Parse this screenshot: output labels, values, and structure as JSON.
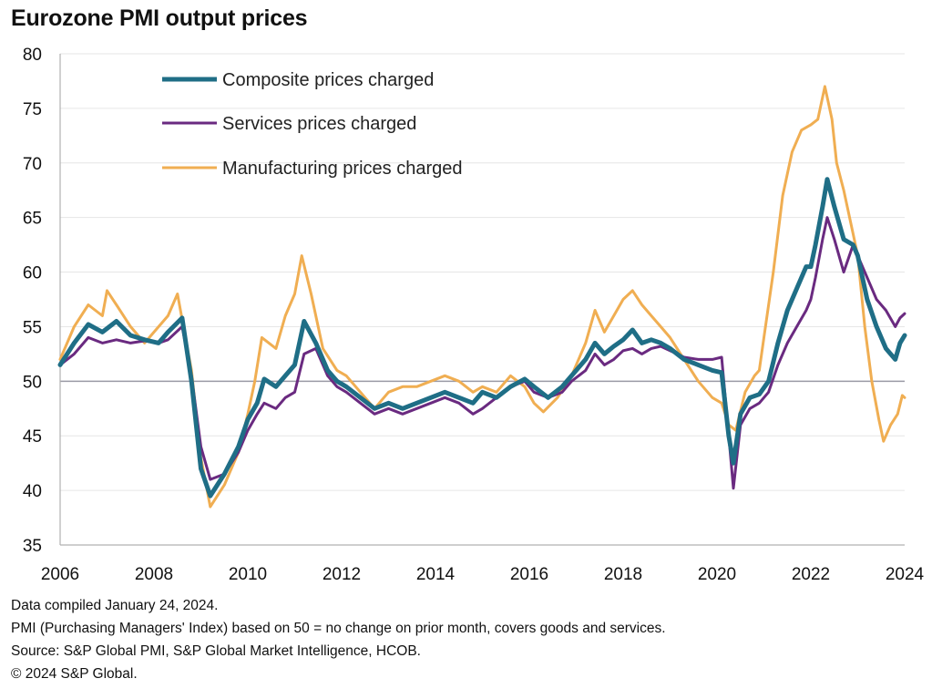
{
  "title": "Eurozone PMI output prices",
  "footnotes": [
    "Data compiled January 24, 2024.",
    "PMI (Purchasing Managers' Index) based on 50 = no change on prior month, covers goods and services.",
    "Source: S&P Global PMI, S&P Global Market Intelligence, HCOB.",
    "© 2024 S&P Global."
  ],
  "colors": {
    "composite": "#1f6e86",
    "services": "#6a2a80",
    "manufacturing": "#f0ae52",
    "grid": "#e6e6e6",
    "refline": "#9a9aa6"
  },
  "chart_data": {
    "type": "line",
    "title": "Eurozone PMI output prices",
    "xlabel": "",
    "ylabel": "",
    "xlim": [
      2006,
      2024
    ],
    "ylim": [
      35,
      80
    ],
    "yticks": [
      35,
      40,
      45,
      50,
      55,
      60,
      65,
      70,
      75,
      80
    ],
    "xticks": [
      2006,
      2008,
      2010,
      2012,
      2014,
      2016,
      2018,
      2020,
      2022,
      2024
    ],
    "xtick_labels": [
      "2006",
      "2008",
      "2010",
      "2012",
      "2014",
      "2016",
      "2018",
      "2020",
      "2022",
      "2024"
    ],
    "reference_line": 50,
    "grid": true,
    "legend_position": "top-left",
    "series": [
      {
        "name": "Composite prices charged",
        "key": "composite",
        "points": [
          [
            2006.0,
            51.5
          ],
          [
            2006.3,
            53.5
          ],
          [
            2006.6,
            55.2
          ],
          [
            2006.9,
            54.5
          ],
          [
            2007.2,
            55.5
          ],
          [
            2007.5,
            54.2
          ],
          [
            2007.8,
            53.8
          ],
          [
            2008.1,
            53.5
          ],
          [
            2008.3,
            54.5
          ],
          [
            2008.6,
            55.8
          ],
          [
            2008.8,
            50
          ],
          [
            2009.0,
            42
          ],
          [
            2009.2,
            39.5
          ],
          [
            2009.5,
            41.5
          ],
          [
            2009.8,
            44
          ],
          [
            2010.0,
            46.5
          ],
          [
            2010.2,
            48
          ],
          [
            2010.35,
            50.2
          ],
          [
            2010.6,
            49.5
          ],
          [
            2010.8,
            50.5
          ],
          [
            2011.0,
            51.5
          ],
          [
            2011.2,
            55.5
          ],
          [
            2011.45,
            53.5
          ],
          [
            2011.7,
            51
          ],
          [
            2011.9,
            50
          ],
          [
            2012.1,
            49.5
          ],
          [
            2012.4,
            48.5
          ],
          [
            2012.7,
            47.5
          ],
          [
            2013.0,
            48
          ],
          [
            2013.3,
            47.5
          ],
          [
            2013.6,
            48
          ],
          [
            2013.9,
            48.5
          ],
          [
            2014.2,
            49
          ],
          [
            2014.5,
            48.5
          ],
          [
            2014.8,
            48
          ],
          [
            2015.0,
            49
          ],
          [
            2015.3,
            48.5
          ],
          [
            2015.6,
            49.5
          ],
          [
            2015.9,
            50.2
          ],
          [
            2016.1,
            49.5
          ],
          [
            2016.4,
            48.5
          ],
          [
            2016.7,
            49.5
          ],
          [
            2016.9,
            50.5
          ],
          [
            2017.2,
            52
          ],
          [
            2017.4,
            53.5
          ],
          [
            2017.6,
            52.5
          ],
          [
            2017.8,
            53.2
          ],
          [
            2018.0,
            53.8
          ],
          [
            2018.2,
            54.7
          ],
          [
            2018.4,
            53.5
          ],
          [
            2018.6,
            53.8
          ],
          [
            2018.8,
            53.5
          ],
          [
            2019.0,
            53
          ],
          [
            2019.3,
            52
          ],
          [
            2019.6,
            51.5
          ],
          [
            2019.9,
            51
          ],
          [
            2020.1,
            50.8
          ],
          [
            2020.25,
            45
          ],
          [
            2020.35,
            42.5
          ],
          [
            2020.5,
            47
          ],
          [
            2020.7,
            48.5
          ],
          [
            2020.9,
            48.8
          ],
          [
            2021.1,
            50
          ],
          [
            2021.3,
            53.5
          ],
          [
            2021.5,
            56.5
          ],
          [
            2021.7,
            58.5
          ],
          [
            2021.9,
            60.5
          ],
          [
            2022.0,
            60.5
          ],
          [
            2022.1,
            62.5
          ],
          [
            2022.25,
            66
          ],
          [
            2022.35,
            68.5
          ],
          [
            2022.5,
            66
          ],
          [
            2022.7,
            63
          ],
          [
            2022.9,
            62.5
          ],
          [
            2023.0,
            61.5
          ],
          [
            2023.2,
            57.5
          ],
          [
            2023.4,
            55
          ],
          [
            2023.6,
            53
          ],
          [
            2023.8,
            52
          ],
          [
            2023.9,
            53.5
          ],
          [
            2024.0,
            54.2
          ]
        ]
      },
      {
        "name": "Services prices charged",
        "key": "services",
        "points": [
          [
            2006.0,
            51.5
          ],
          [
            2006.3,
            52.5
          ],
          [
            2006.6,
            54
          ],
          [
            2006.9,
            53.5
          ],
          [
            2007.2,
            53.8
          ],
          [
            2007.5,
            53.5
          ],
          [
            2007.8,
            53.7
          ],
          [
            2008.1,
            53.5
          ],
          [
            2008.3,
            53.8
          ],
          [
            2008.6,
            55
          ],
          [
            2008.8,
            50.5
          ],
          [
            2009.0,
            44
          ],
          [
            2009.2,
            41
          ],
          [
            2009.5,
            41.5
          ],
          [
            2009.8,
            43.5
          ],
          [
            2010.0,
            45.5
          ],
          [
            2010.2,
            47
          ],
          [
            2010.35,
            48
          ],
          [
            2010.6,
            47.5
          ],
          [
            2010.8,
            48.5
          ],
          [
            2011.0,
            49
          ],
          [
            2011.2,
            52.5
          ],
          [
            2011.45,
            53
          ],
          [
            2011.7,
            50.5
          ],
          [
            2011.9,
            49.5
          ],
          [
            2012.1,
            49
          ],
          [
            2012.4,
            48
          ],
          [
            2012.7,
            47
          ],
          [
            2013.0,
            47.5
          ],
          [
            2013.3,
            47
          ],
          [
            2013.6,
            47.5
          ],
          [
            2013.9,
            48
          ],
          [
            2014.2,
            48.5
          ],
          [
            2014.5,
            48
          ],
          [
            2014.8,
            47
          ],
          [
            2015.0,
            47.5
          ],
          [
            2015.3,
            48.5
          ],
          [
            2015.6,
            49.5
          ],
          [
            2015.9,
            50
          ],
          [
            2016.1,
            49
          ],
          [
            2016.4,
            48.5
          ],
          [
            2016.7,
            49
          ],
          [
            2016.9,
            50
          ],
          [
            2017.2,
            51
          ],
          [
            2017.4,
            52.5
          ],
          [
            2017.6,
            51.5
          ],
          [
            2017.8,
            52
          ],
          [
            2018.0,
            52.8
          ],
          [
            2018.2,
            53
          ],
          [
            2018.4,
            52.5
          ],
          [
            2018.6,
            53
          ],
          [
            2018.8,
            53.2
          ],
          [
            2019.0,
            52.8
          ],
          [
            2019.3,
            52.2
          ],
          [
            2019.6,
            52
          ],
          [
            2019.9,
            52
          ],
          [
            2020.1,
            52.2
          ],
          [
            2020.25,
            45
          ],
          [
            2020.35,
            40.2
          ],
          [
            2020.5,
            46
          ],
          [
            2020.7,
            47.5
          ],
          [
            2020.9,
            48
          ],
          [
            2021.1,
            49
          ],
          [
            2021.3,
            51.5
          ],
          [
            2021.5,
            53.5
          ],
          [
            2021.7,
            55
          ],
          [
            2021.9,
            56.5
          ],
          [
            2022.0,
            57.5
          ],
          [
            2022.1,
            59.5
          ],
          [
            2022.25,
            63
          ],
          [
            2022.35,
            65
          ],
          [
            2022.5,
            63
          ],
          [
            2022.7,
            60
          ],
          [
            2022.9,
            62.5
          ],
          [
            2023.0,
            61.5
          ],
          [
            2023.2,
            59.5
          ],
          [
            2023.4,
            57.5
          ],
          [
            2023.6,
            56.5
          ],
          [
            2023.8,
            55
          ],
          [
            2023.9,
            55.8
          ],
          [
            2024.0,
            56.2
          ]
        ]
      },
      {
        "name": "Manufacturing prices charged",
        "key": "manufacturing",
        "points": [
          [
            2006.0,
            52
          ],
          [
            2006.3,
            55
          ],
          [
            2006.6,
            57
          ],
          [
            2006.9,
            56
          ],
          [
            2007.0,
            58.3
          ],
          [
            2007.2,
            57
          ],
          [
            2007.5,
            55
          ],
          [
            2007.8,
            53.5
          ],
          [
            2008.0,
            54.5
          ],
          [
            2008.3,
            56
          ],
          [
            2008.5,
            58
          ],
          [
            2008.8,
            51
          ],
          [
            2009.0,
            43
          ],
          [
            2009.2,
            38.5
          ],
          [
            2009.5,
            40.5
          ],
          [
            2009.8,
            43.5
          ],
          [
            2010.0,
            47
          ],
          [
            2010.15,
            50
          ],
          [
            2010.3,
            54
          ],
          [
            2010.6,
            53
          ],
          [
            2010.8,
            56
          ],
          [
            2011.0,
            58
          ],
          [
            2011.15,
            61.5
          ],
          [
            2011.35,
            58
          ],
          [
            2011.6,
            53
          ],
          [
            2011.9,
            51
          ],
          [
            2012.1,
            50.5
          ],
          [
            2012.4,
            49
          ],
          [
            2012.7,
            47.5
          ],
          [
            2013.0,
            49
          ],
          [
            2013.3,
            49.5
          ],
          [
            2013.6,
            49.5
          ],
          [
            2013.9,
            50
          ],
          [
            2014.2,
            50.5
          ],
          [
            2014.5,
            50
          ],
          [
            2014.8,
            49
          ],
          [
            2015.0,
            49.5
          ],
          [
            2015.3,
            49
          ],
          [
            2015.6,
            50.5
          ],
          [
            2015.9,
            49.5
          ],
          [
            2016.1,
            48
          ],
          [
            2016.3,
            47.2
          ],
          [
            2016.6,
            48.5
          ],
          [
            2016.9,
            50.5
          ],
          [
            2017.2,
            53.5
          ],
          [
            2017.4,
            56.5
          ],
          [
            2017.6,
            54.5
          ],
          [
            2017.8,
            56
          ],
          [
            2018.0,
            57.5
          ],
          [
            2018.2,
            58.3
          ],
          [
            2018.4,
            57
          ],
          [
            2018.6,
            56
          ],
          [
            2018.8,
            55
          ],
          [
            2019.0,
            54
          ],
          [
            2019.3,
            52
          ],
          [
            2019.6,
            50
          ],
          [
            2019.9,
            48.5
          ],
          [
            2020.1,
            48
          ],
          [
            2020.25,
            46
          ],
          [
            2020.4,
            45.5
          ],
          [
            2020.6,
            49
          ],
          [
            2020.8,
            50.5
          ],
          [
            2020.9,
            51
          ],
          [
            2021.0,
            54
          ],
          [
            2021.2,
            60
          ],
          [
            2021.4,
            67
          ],
          [
            2021.6,
            71
          ],
          [
            2021.8,
            73
          ],
          [
            2022.0,
            73.5
          ],
          [
            2022.15,
            74
          ],
          [
            2022.3,
            77
          ],
          [
            2022.45,
            74
          ],
          [
            2022.55,
            70
          ],
          [
            2022.7,
            67.5
          ],
          [
            2022.9,
            63.5
          ],
          [
            2023.0,
            61.5
          ],
          [
            2023.15,
            55
          ],
          [
            2023.3,
            50
          ],
          [
            2023.45,
            46.5
          ],
          [
            2023.55,
            44.5
          ],
          [
            2023.7,
            46
          ],
          [
            2023.85,
            47
          ],
          [
            2023.95,
            48.7
          ],
          [
            2024.0,
            48.5
          ]
        ]
      }
    ]
  }
}
